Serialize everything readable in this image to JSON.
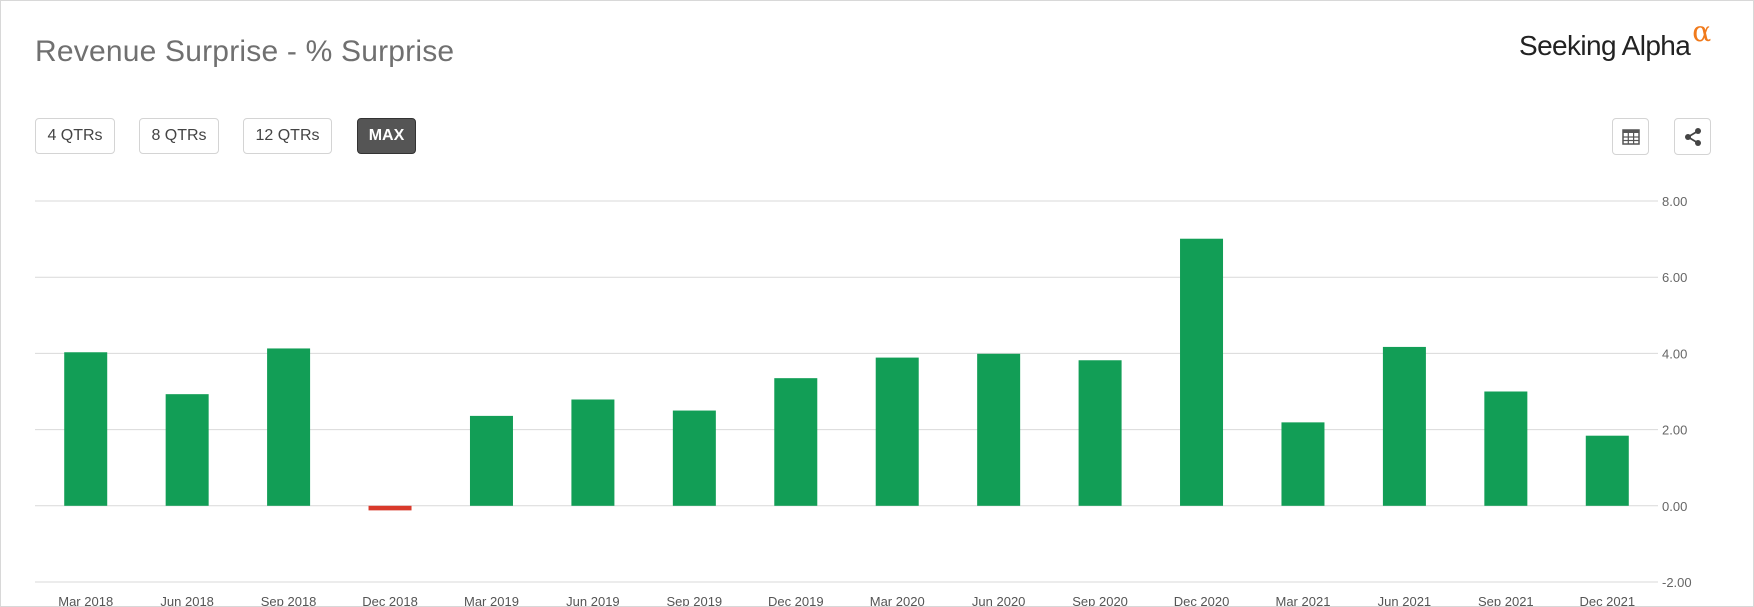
{
  "title": "Revenue Surprise - % Surprise",
  "brand": {
    "name": "Seeking Alpha",
    "symbol": "α"
  },
  "range_buttons": [
    {
      "label": "4 QTRs",
      "active": false
    },
    {
      "label": "8 QTRs",
      "active": false
    },
    {
      "label": "12 QTRs",
      "active": false
    },
    {
      "label": "MAX",
      "active": true
    }
  ],
  "icons": {
    "table": "table-icon",
    "share": "share-icon"
  },
  "colors": {
    "positive": "#129e56",
    "negative": "#d9392b",
    "grid": "#d9d9d9"
  },
  "chart_data": {
    "type": "bar",
    "title": "Revenue Surprise - % Surprise",
    "categories": [
      "Mar 2018",
      "Jun 2018",
      "Sep 2018",
      "Dec 2018",
      "Mar 2019",
      "Jun 2019",
      "Sep 2019",
      "Dec 2019",
      "Mar 2020",
      "Jun 2020",
      "Sep 2020",
      "Dec 2020",
      "Mar 2021",
      "Jun 2021",
      "Sep 2021",
      "Dec 2021"
    ],
    "values": [
      4.03,
      2.93,
      4.13,
      -0.12,
      2.36,
      2.79,
      2.5,
      3.35,
      3.89,
      3.99,
      3.82,
      7.01,
      2.19,
      4.17,
      3.0,
      1.84
    ],
    "yticks": [
      "8.00",
      "6.00",
      "4.00",
      "2.00",
      "0.00",
      "-2.00"
    ],
    "ylim": [
      -2,
      8
    ],
    "grid": true,
    "y_axis_side": "right",
    "legend": "none"
  }
}
